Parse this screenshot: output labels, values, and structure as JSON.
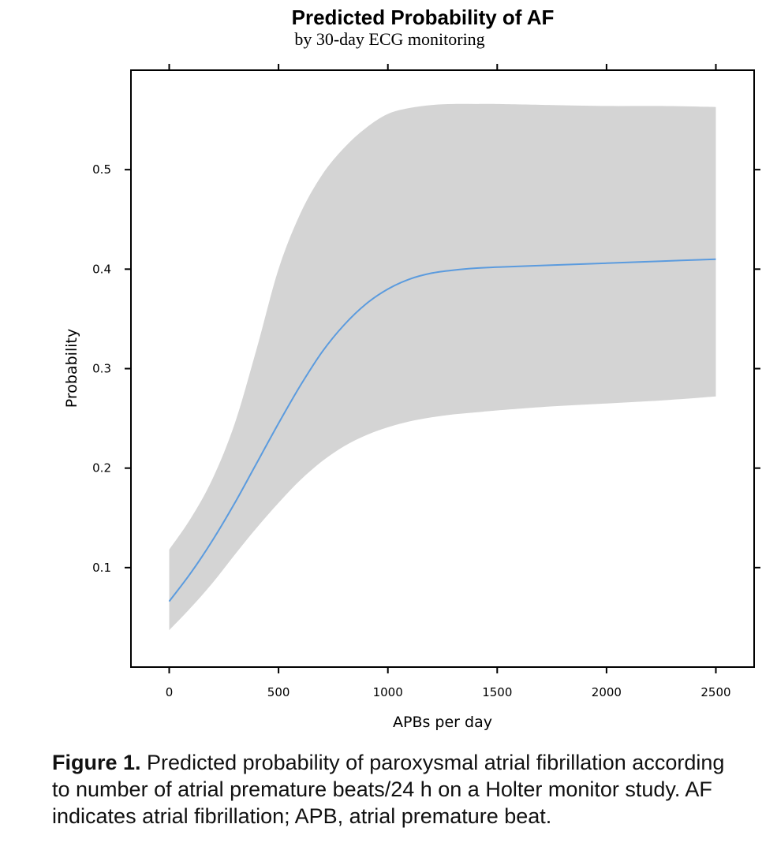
{
  "chart_data": {
    "type": "line",
    "title": "Predicted Probability of AF",
    "subtitle": "by 30-day ECG monitoring",
    "xlabel": "APBs per day",
    "ylabel": "Probability",
    "xlim": [
      -175,
      2675
    ],
    "ylim": [
      0.0,
      0.6
    ],
    "xticks": [
      0,
      500,
      1000,
      1500,
      2000,
      2500
    ],
    "xtick_labels": [
      "0",
      "500",
      "1000",
      "1500",
      "2000",
      "2500"
    ],
    "yticks": [
      0.1,
      0.2,
      0.3,
      0.4,
      0.5
    ],
    "ytick_labels": [
      "0.1",
      "0.2",
      "0.3",
      "0.4",
      "0.5"
    ],
    "grid": false,
    "x": [
      0,
      100,
      200,
      300,
      400,
      500,
      600,
      700,
      800,
      900,
      1000,
      1100,
      1200,
      1300,
      1400,
      1500,
      1750,
      2000,
      2250,
      2500
    ],
    "series": [
      {
        "values": [
          0.066,
          0.095,
          0.128,
          0.165,
          0.205,
          0.245,
          0.283,
          0.317,
          0.344,
          0.365,
          0.38,
          0.39,
          0.396,
          0.399,
          0.401,
          0.402,
          0.404,
          0.406,
          0.408,
          0.41
        ],
        "color": "#5b9bde"
      }
    ],
    "band": {
      "lower": [
        0.037,
        0.06,
        0.085,
        0.113,
        0.14,
        0.165,
        0.188,
        0.207,
        0.222,
        0.233,
        0.241,
        0.247,
        0.251,
        0.254,
        0.256,
        0.258,
        0.262,
        0.265,
        0.268,
        0.272
      ],
      "upper": [
        0.118,
        0.15,
        0.19,
        0.245,
        0.32,
        0.4,
        0.456,
        0.495,
        0.522,
        0.542,
        0.556,
        0.562,
        0.565,
        0.566,
        0.566,
        0.566,
        0.565,
        0.564,
        0.564,
        0.563
      ],
      "color": "#d4d4d4"
    }
  },
  "caption": {
    "label": "Figure 1.",
    "text": " Predicted probability of paroxysmal atrial fibrillation according to number of atrial premature beats/24 h on a Holter monitor study. AF indicates atrial fibrillation; APB, atrial premature beat."
  }
}
